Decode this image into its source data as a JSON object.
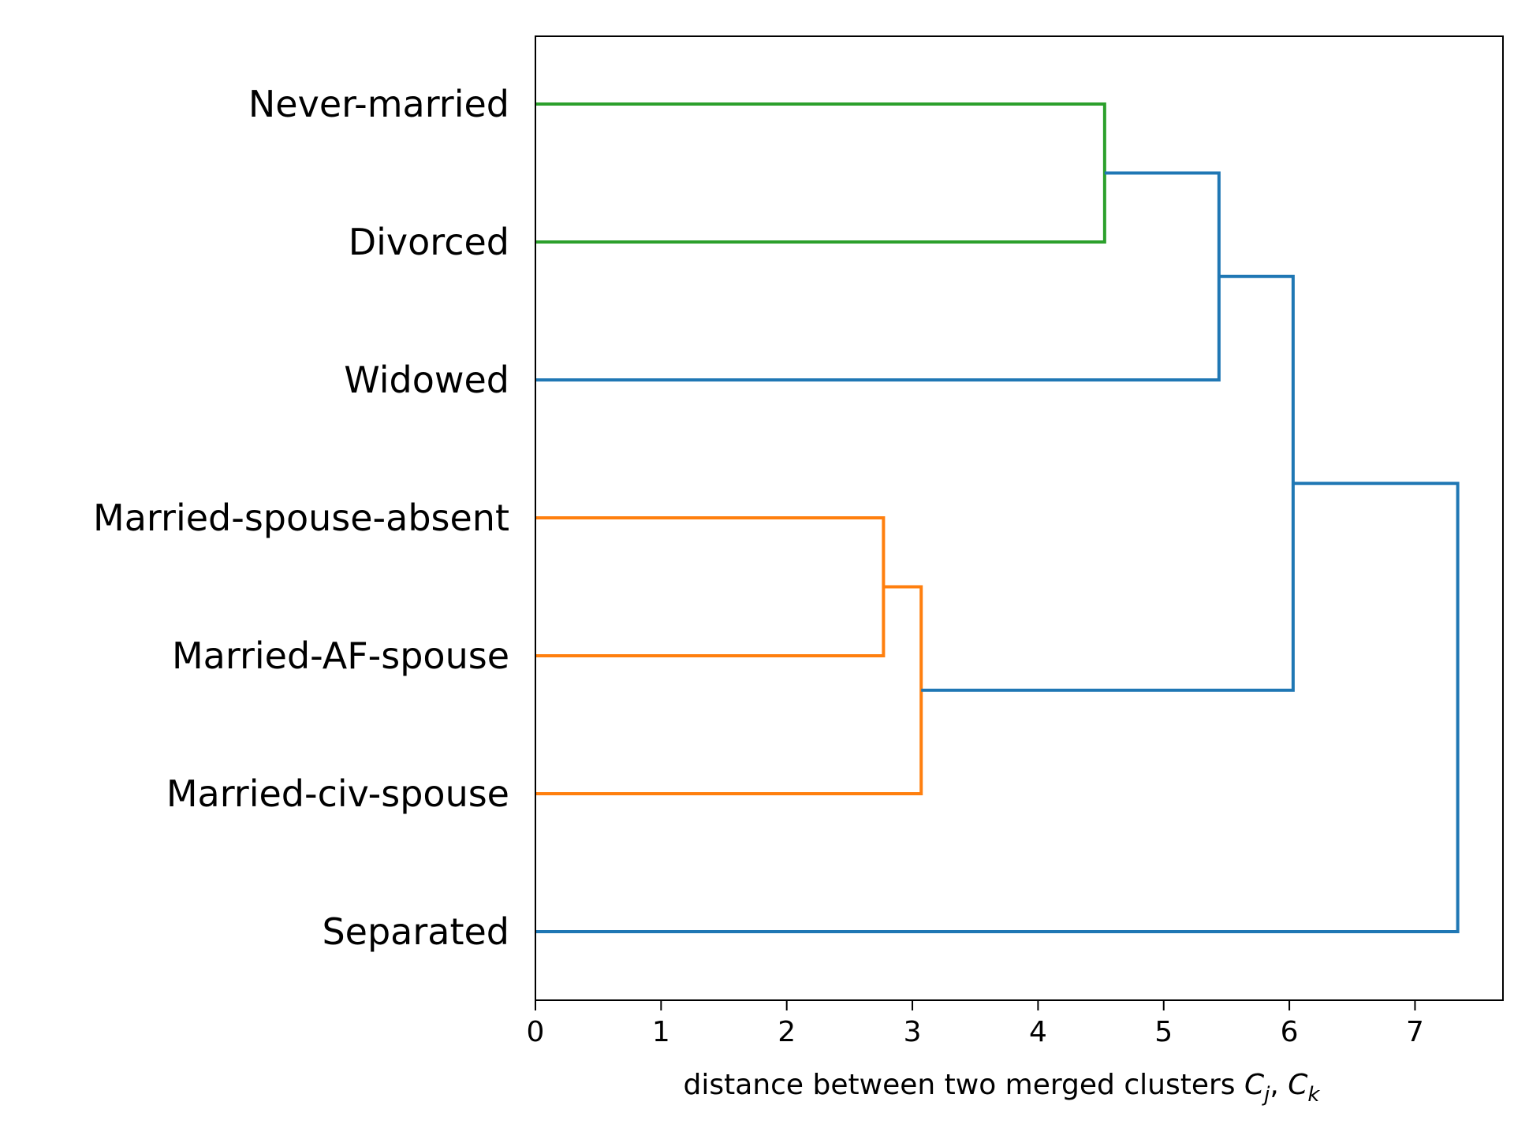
{
  "chart_data": {
    "type": "dendrogram",
    "orientation": "horizontal",
    "xlabel_text": "distance between two merged clusters ",
    "xlabel_math": [
      {
        "base": "C",
        "sub": "j"
      },
      {
        "sep": ", "
      },
      {
        "base": "C",
        "sub": "k"
      }
    ],
    "xlim": [
      0,
      7.7
    ],
    "x_ticks": [
      "0",
      "1",
      "2",
      "3",
      "4",
      "5",
      "6",
      "7"
    ],
    "x_tick_values": [
      0,
      1,
      2,
      3,
      4,
      5,
      6,
      7
    ],
    "grid": false,
    "leaves": [
      "Never-married",
      "Divorced",
      "Widowed",
      "Married-spouse-absent",
      "Married-AF-spouse",
      "Married-civ-spouse",
      "Separated"
    ],
    "merges": [
      {
        "id": "c1",
        "left": "Never-married",
        "right": "Divorced",
        "distance": 4.53,
        "color": "#2ca02c"
      },
      {
        "id": "c2",
        "left": "c1",
        "right": "Widowed",
        "distance": 5.44,
        "color": "#1f77b4"
      },
      {
        "id": "c3",
        "left": "Married-spouse-absent",
        "right": "Married-AF-spouse",
        "distance": 2.77,
        "color": "#ff7f0e"
      },
      {
        "id": "c4",
        "left": "c3",
        "right": "Married-civ-spouse",
        "distance": 3.07,
        "color": "#ff7f0e"
      },
      {
        "id": "c5",
        "left": "c2",
        "right": "c4",
        "distance": 6.03,
        "color": "#1f77b4"
      },
      {
        "id": "c6",
        "left": "c5",
        "right": "Separated",
        "distance": 7.34,
        "color": "#1f77b4"
      }
    ],
    "colors": {
      "green": "#2ca02c",
      "orange": "#ff7f0e",
      "blue": "#1f77b4"
    }
  }
}
